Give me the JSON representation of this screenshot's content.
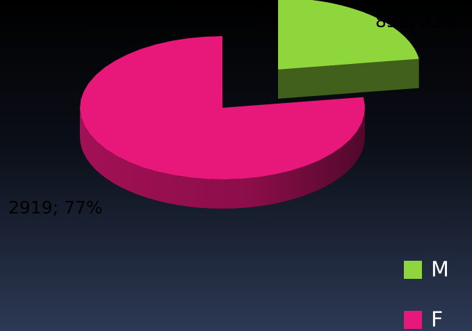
{
  "chart_data": {
    "type": "pie",
    "categories": [
      "M",
      "F"
    ],
    "values": [
      853,
      2919
    ],
    "value_labels": [
      "853; 23%",
      "2919; 77%"
    ],
    "colors": [
      "#8fd63d",
      "#e8177a"
    ],
    "legend": "right"
  }
}
